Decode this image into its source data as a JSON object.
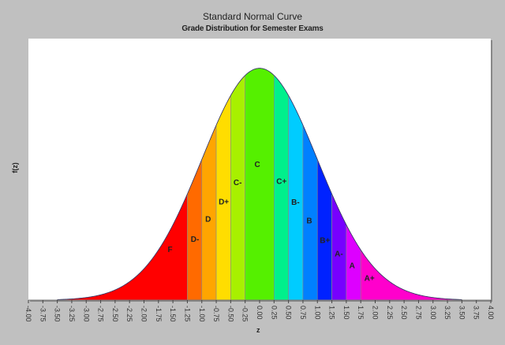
{
  "chart_data": {
    "type": "area",
    "title": "Standard Normal Curve",
    "subtitle": "Grade Distribution for Semester Exams",
    "xlabel": "z",
    "ylabel": "f(z)",
    "xlim": [
      -4.0,
      4.0
    ],
    "ylim": [
      0,
      0.45
    ],
    "curve_range": [
      -3.5,
      3.5
    ],
    "grid": false,
    "x_ticks": [
      "-4.00",
      "-3.75",
      "-3.50",
      "-3.25",
      "-3.00",
      "-2.75",
      "-2.50",
      "-2.25",
      "-2.00",
      "-1.75",
      "-1.50",
      "-1.25",
      "-1.00",
      "-0.75",
      "-0.50",
      "-0.25",
      "0.00",
      "0.25",
      "0.50",
      "0.75",
      "1.00",
      "1.25",
      "1.50",
      "1.75",
      "2.00",
      "2.25",
      "2.50",
      "2.75",
      "3.00",
      "3.25",
      "3.50",
      "3.75",
      "4.00"
    ],
    "function": "standard normal pdf f(z) = exp(-z^2/2)/sqrt(2*pi)",
    "bands": [
      {
        "grade": "F",
        "from": -3.5,
        "to": -1.25,
        "color": "#ff0000",
        "label_z": -1.55,
        "label_y": 0.083
      },
      {
        "grade": "D-",
        "from": -1.25,
        "to": -1.0,
        "color": "#ff6a00",
        "label_z": -1.12,
        "label_y": 0.1
      },
      {
        "grade": "D",
        "from": -1.0,
        "to": -0.75,
        "color": "#ffa500",
        "label_z": -0.89,
        "label_y": 0.135
      },
      {
        "grade": "D+",
        "from": -0.75,
        "to": -0.5,
        "color": "#ffdd00",
        "label_z": -0.62,
        "label_y": 0.165
      },
      {
        "grade": "C-",
        "from": -0.5,
        "to": -0.25,
        "color": "#a8f000",
        "label_z": -0.38,
        "label_y": 0.198
      },
      {
        "grade": "C",
        "from": -0.25,
        "to": 0.25,
        "color": "#55f000",
        "label_z": -0.04,
        "label_y": 0.229
      },
      {
        "grade": "C+",
        "from": 0.25,
        "to": 0.5,
        "color": "#00f08c",
        "label_z": 0.38,
        "label_y": 0.2
      },
      {
        "grade": "B-",
        "from": 0.5,
        "to": 0.75,
        "color": "#00ccff",
        "label_z": 0.62,
        "label_y": 0.164
      },
      {
        "grade": "B",
        "from": 0.75,
        "to": 1.0,
        "color": "#0080ff",
        "label_z": 0.86,
        "label_y": 0.132
      },
      {
        "grade": "B+",
        "from": 1.0,
        "to": 1.25,
        "color": "#0022ff",
        "label_z": 1.13,
        "label_y": 0.098
      },
      {
        "grade": "A-",
        "from": 1.25,
        "to": 1.5,
        "color": "#7700ff",
        "label_z": 1.37,
        "label_y": 0.075
      },
      {
        "grade": "A",
        "from": 1.5,
        "to": 1.75,
        "color": "#dd00ff",
        "label_z": 1.6,
        "label_y": 0.055
      },
      {
        "grade": "A+",
        "from": 1.75,
        "to": 3.5,
        "color": "#ff00cc",
        "label_z": 1.9,
        "label_y": 0.033
      }
    ]
  },
  "colors": {
    "background": "#c0c0c0",
    "plot_background": "#ffffff",
    "band_divider": "#888888",
    "curve_outline": "#333366"
  }
}
